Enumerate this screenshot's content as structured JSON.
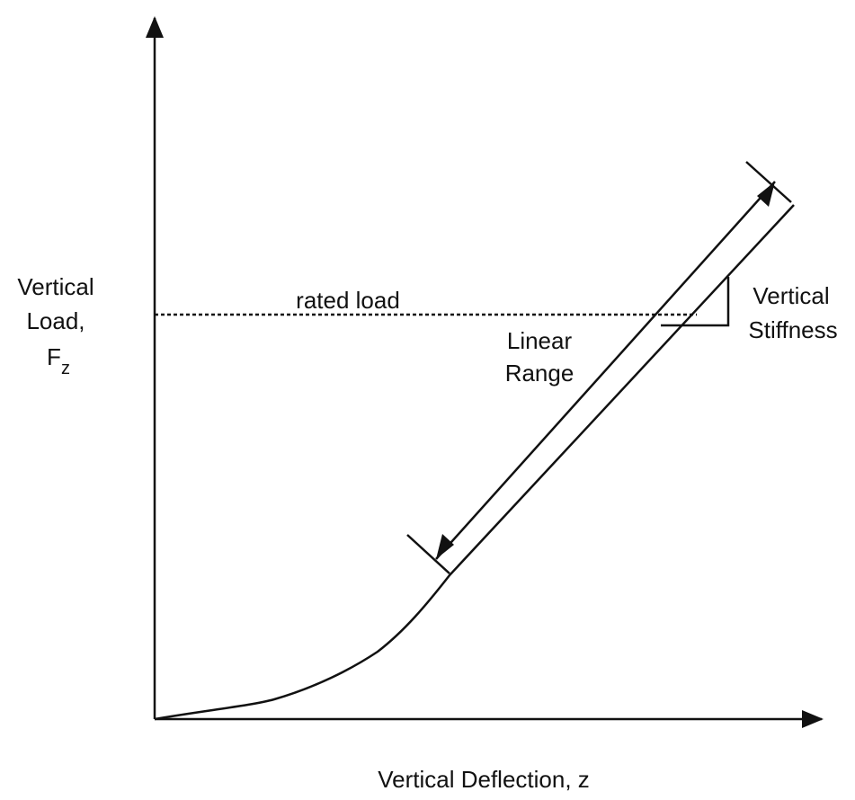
{
  "y_axis": {
    "label_lines": [
      "Vertical",
      "Load,"
    ],
    "symbol": "F",
    "subscript": "z"
  },
  "x_axis": {
    "label": "Vertical Deflection, z"
  },
  "annotations": {
    "rated_load": "rated load",
    "linear_range": [
      "Linear",
      "Range"
    ],
    "stiffness": [
      "Vertical",
      "Stiffness"
    ]
  }
}
